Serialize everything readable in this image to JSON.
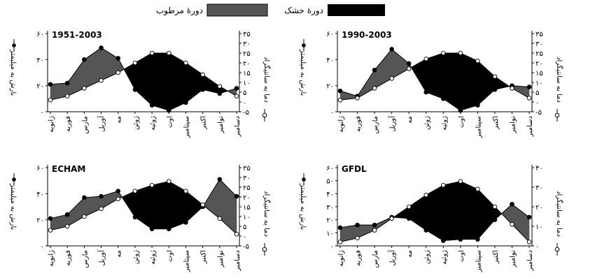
{
  "legend": {
    "wet_label": "دورهٔ مرطوب",
    "dry_label": "دورهٔ خشک",
    "wet_color": "#555555",
    "dry_color": "#000000"
  },
  "chart_data": [
    {
      "type": "area",
      "title": "1951-2003",
      "ylabel_left": "بارش به میلیمتر",
      "ylabel_right": "دما به سانتیگراد",
      "categories": [
        "ژانویه",
        "فوریه",
        "مارس",
        "آوریل",
        "مه",
        "ژوئن",
        "ژوئیه",
        "اوت",
        "سپتامبر",
        "اکتبر",
        "نوامبر",
        "دسامبر"
      ],
      "precip_axis": {
        "min": 0,
        "max": 60,
        "ticks": [
          0,
          20,
          40,
          60
        ],
        "tick_labels": [
          "۰",
          "۲۰",
          "۴۰",
          "۶۰"
        ]
      },
      "temp_axis": {
        "min": -5,
        "max": 35,
        "ticks": [
          -5,
          0,
          5,
          10,
          15,
          20,
          25,
          30,
          35
        ],
        "tick_labels": [
          "-۵",
          "۰",
          "۵",
          "۱۰",
          "۱۵",
          "۲۰",
          "۲۵",
          "۳۰",
          "۳۵"
        ]
      },
      "series": [
        {
          "name": "بارش",
          "axis": "left",
          "marker": "filled",
          "values": [
            21,
            22,
            40,
            49,
            41,
            17,
            5,
            1,
            7,
            17,
            14,
            18
          ]
        },
        {
          "name": "دما",
          "axis": "right",
          "marker": "open",
          "values": [
            1,
            3,
            7,
            11,
            15,
            20,
            25,
            25,
            20,
            14,
            8,
            3
          ]
        }
      ],
      "grid": false
    },
    {
      "type": "area",
      "title": "1990-2003",
      "ylabel_left": "بارش به میلیمتر",
      "ylabel_right": "دما به سانتیگراد",
      "categories": [
        "ژانویه",
        "فوریه",
        "مارس",
        "آوریل",
        "مه",
        "ژوئن",
        "ژوئیه",
        "اوت",
        "سپتامبر",
        "اکتبر",
        "نوامبر",
        "دسامبر"
      ],
      "precip_axis": {
        "min": 0,
        "max": 60,
        "ticks": [
          0,
          20,
          40,
          60
        ],
        "tick_labels": [
          "۰",
          "۲۰",
          "۴۰",
          "۶۰"
        ]
      },
      "temp_axis": {
        "min": -5,
        "max": 35,
        "ticks": [
          -5,
          0,
          5,
          10,
          15,
          20,
          25,
          30,
          35
        ],
        "tick_labels": [
          "-۵",
          "۰",
          "۵",
          "۱۰",
          "۱۵",
          "۲۰",
          "۲۵",
          "۳۰",
          "۳۵"
        ]
      },
      "series": [
        {
          "name": "بارش",
          "axis": "left",
          "marker": "filled",
          "values": [
            16,
            12,
            32,
            48,
            37,
            15,
            10,
            1,
            5,
            17,
            20,
            19
          ]
        },
        {
          "name": "دما",
          "axis": "right",
          "marker": "open",
          "values": [
            1,
            2,
            7,
            12,
            17,
            22,
            25,
            25,
            21,
            13,
            7,
            2
          ]
        }
      ],
      "grid": false
    },
    {
      "type": "area",
      "title": "ECHAM",
      "ylabel_left": "بارش به میلیمتر",
      "ylabel_right": "دما به سانتیگراد",
      "categories": [
        "ژانویه",
        "فوریه",
        "مارس",
        "آوریل",
        "مه",
        "ژوئن",
        "ژوئیه",
        "اوت",
        "سپتامبر",
        "اکتبر",
        "نوامبر",
        "دسامبر"
      ],
      "precip_axis": {
        "min": 0,
        "max": 60,
        "ticks": [
          0,
          20,
          40,
          60
        ],
        "tick_labels": [
          "۰",
          "۲۰",
          "۴۰",
          "۶۰"
        ]
      },
      "temp_axis": {
        "min": -5,
        "max": 35,
        "ticks": [
          -5,
          0,
          5,
          10,
          15,
          20,
          25,
          30,
          35
        ],
        "tick_labels": [
          "-۵",
          "۰",
          "۵",
          "۱۰",
          "۱۵",
          "۲۰",
          "۲۵",
          "۳۰",
          "۳۵"
        ]
      },
      "series": [
        {
          "name": "بارش",
          "axis": "left",
          "marker": "filled",
          "values": [
            21,
            24,
            37,
            38,
            42,
            22,
            13,
            13,
            18,
            30,
            51,
            38
          ]
        },
        {
          "name": "دما",
          "axis": "right",
          "marker": "open",
          "values": [
            3,
            5,
            10,
            14,
            19,
            23,
            26,
            28,
            23,
            16,
            9,
            1
          ]
        }
      ],
      "grid": false
    },
    {
      "type": "area",
      "title": "GFDL",
      "ylabel_left": "بارش به میلیمتر",
      "ylabel_right": "دما به سانتیگراد",
      "categories": [
        "ژانویه",
        "فوریه",
        "مارس",
        "آوریل",
        "مه",
        "ژوئن",
        "ژوئیه",
        "اوت",
        "سپتامبر",
        "اکتبر",
        "نوامبر",
        "دسامبر"
      ],
      "precip_axis": {
        "min": 0,
        "max": 60,
        "ticks": [
          0,
          10,
          20,
          30,
          40,
          50,
          60
        ],
        "tick_labels": [
          "۰",
          "۱۰",
          "۲۰",
          "۳۰",
          "۴۰",
          "۵۰",
          "۶۰"
        ]
      },
      "temp_axis": {
        "min": 0,
        "max": 40,
        "ticks": [
          0,
          10,
          20,
          30,
          40
        ],
        "tick_labels": [
          "۰",
          "۱۰",
          "۲۰",
          "۳۰",
          "۴۰"
        ]
      },
      "series": [
        {
          "name": "بارش",
          "axis": "left",
          "marker": "filled",
          "values": [
            14,
            16,
            16,
            22,
            21,
            12,
            4,
            5,
            5,
            20,
            32,
            22
          ]
        },
        {
          "name": "دما",
          "axis": "right",
          "marker": "open",
          "values": [
            2,
            4,
            8,
            14,
            20,
            26,
            31,
            33,
            29,
            20,
            11,
            2
          ]
        }
      ],
      "grid": false
    }
  ]
}
